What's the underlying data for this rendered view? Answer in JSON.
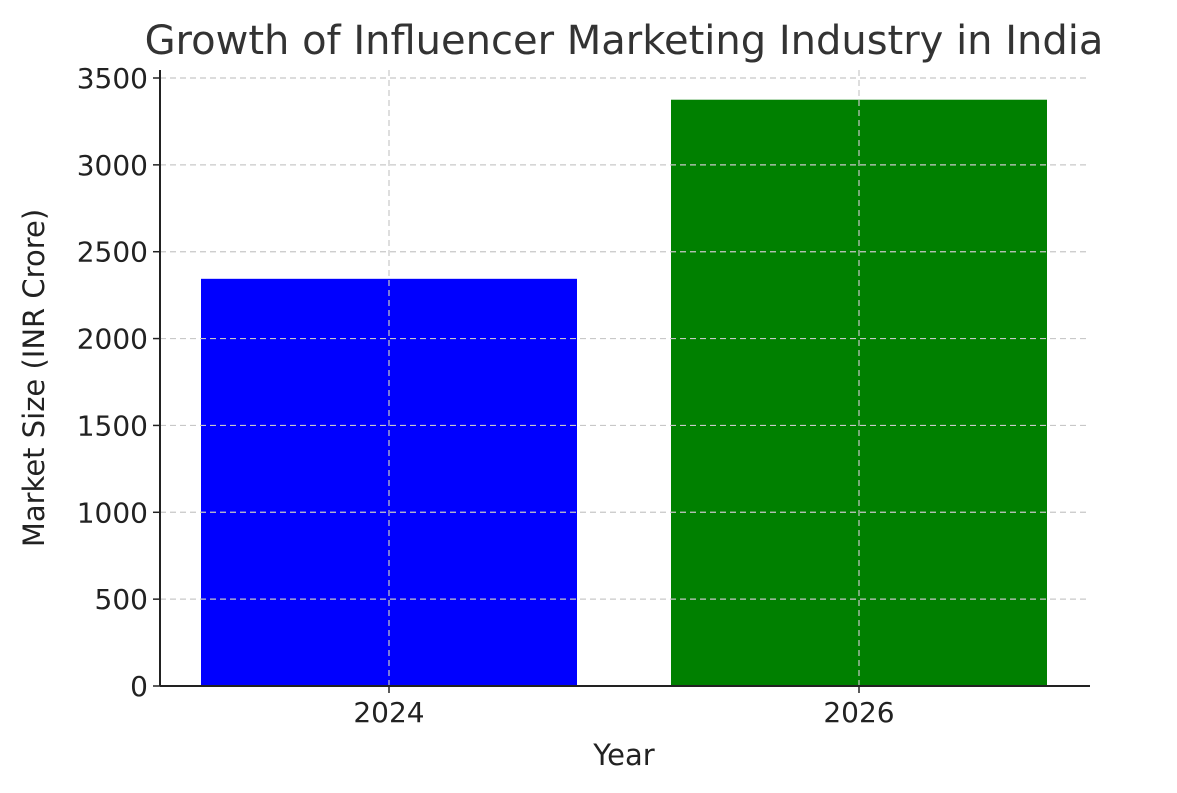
{
  "chart_data": {
    "type": "bar",
    "title": "Growth of Influencer Marketing Industry in India",
    "xlabel": "Year",
    "ylabel": "Market Size (INR Crore)",
    "categories": [
      "2024",
      "2026"
    ],
    "values": [
      2344,
      3375
    ],
    "colors": [
      "#0000ff",
      "#008000"
    ],
    "ylim": [
      0,
      3500
    ],
    "yticks": [
      0,
      500,
      1000,
      1500,
      2000,
      2500,
      3000,
      3500
    ],
    "grid": true
  }
}
